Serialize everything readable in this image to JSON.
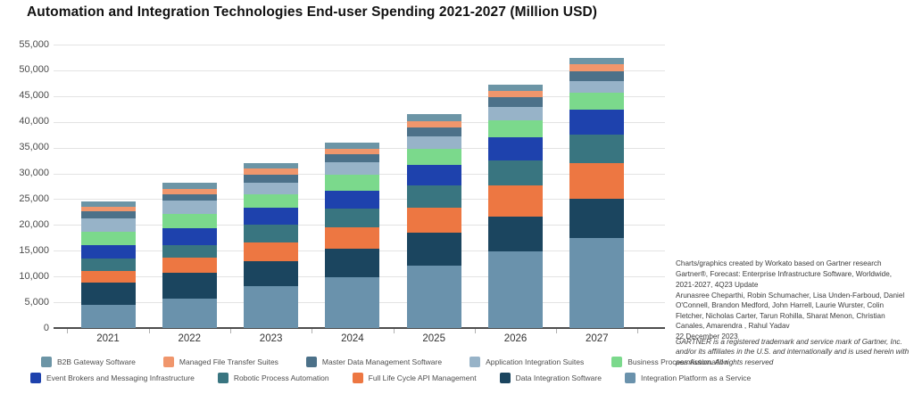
{
  "page": {
    "title": "Automation and Integration Technologies End-user Spending 2021-2027 (Million USD)"
  },
  "chart_data": {
    "type": "bar",
    "stacked": true,
    "title": "Automation and Integration Technologies End-user Spending 2021-2027 (Million USD)",
    "unit": "Million USD",
    "categories": [
      "2021",
      "2022",
      "2023",
      "2024",
      "2025",
      "2026",
      "2027"
    ],
    "series": [
      {
        "name": "B2B Gateway Software",
        "color": "#6C95A6",
        "values": [
          1000,
          1200,
          1000,
          1250,
          1350,
          1250,
          1250
        ]
      },
      {
        "name": "Managed File Transfer Suites",
        "color": "#F0966C",
        "values": [
          850,
          1000,
          1150,
          1050,
          1150,
          1150,
          1350
        ]
      },
      {
        "name": "Master Data Management Software",
        "color": "#4C7189",
        "values": [
          1450,
          1350,
          1600,
          1600,
          1750,
          1900,
          1900
        ]
      },
      {
        "name": "Application Integration Suites",
        "color": "#97B3C8",
        "values": [
          2600,
          2450,
          2200,
          2400,
          2400,
          2600,
          2300
        ]
      },
      {
        "name": "Business Process Automation",
        "color": "#7BD98C",
        "values": [
          2600,
          2750,
          2700,
          3000,
          3150,
          3300,
          3300
        ]
      },
      {
        "name": "Event Brokers and Messaging Infrastructure",
        "color": "#1E42AD",
        "values": [
          2600,
          3300,
          3300,
          3450,
          4050,
          4500,
          4900
        ]
      },
      {
        "name": "Robotic Process Automation",
        "color": "#397580",
        "values": [
          2300,
          2450,
          3350,
          3650,
          4300,
          4900,
          5500
        ]
      },
      {
        "name": "Full Life Cycle API Management",
        "color": "#ED7742",
        "values": [
          2300,
          3000,
          3750,
          4200,
          4900,
          6050,
          6900
        ]
      },
      {
        "name": "Data Integration Software",
        "color": "#1B455F",
        "values": [
          4300,
          4950,
          4750,
          5600,
          6350,
          6800,
          7500
        ]
      },
      {
        "name": "Integration Platform as a Service",
        "color": "#6A92AC",
        "values": [
          4550,
          5750,
          8150,
          9800,
          12100,
          14800,
          17550
        ]
      }
    ],
    "stack_order": "reverse-legend (last series at bottom of stack, first series on top)",
    "totals": [
      24550,
      28200,
      31950,
      36000,
      41500,
      47250,
      52450
    ],
    "ylim": [
      0,
      55000
    ],
    "ytick_interval": 5000,
    "ytick_labels": [
      "0",
      "5,000",
      "10,000",
      "15,000",
      "20,000",
      "25,000",
      "30,000",
      "35,000",
      "40,000",
      "45,000",
      "50,000",
      "55,000"
    ],
    "grid": true,
    "legend_position": "bottom",
    "legend_rows": [
      [
        0,
        1,
        2,
        3,
        4
      ],
      [
        5,
        6,
        7,
        8,
        9
      ]
    ]
  },
  "attribution": {
    "lines": [
      "Charts/graphics created by Workato based on Gartner research",
      "Gartner®, Forecast: Enterprise Infrastructure Software, Worldwide, 2021-2027, 4Q23 Update",
      "Arunasree Cheparthi, Robin Schumacher, Lisa Unden-Farboud, Daniel O'Connell, Brandon Medford, John Harrell, Laurie Wurster, Colin Fletcher, Nicholas Carter, Tarun Rohilla, Sharat Menon, Christian Canales, Amarendra , Rahul Yadav",
      "22 December 2023"
    ]
  },
  "disclaimer": {
    "text": "GARTNER is a registered trademark and service mark of Gartner, Inc. and/or its affiliates in the U.S. and internationally and is used herein with permission. All rights reserved"
  }
}
